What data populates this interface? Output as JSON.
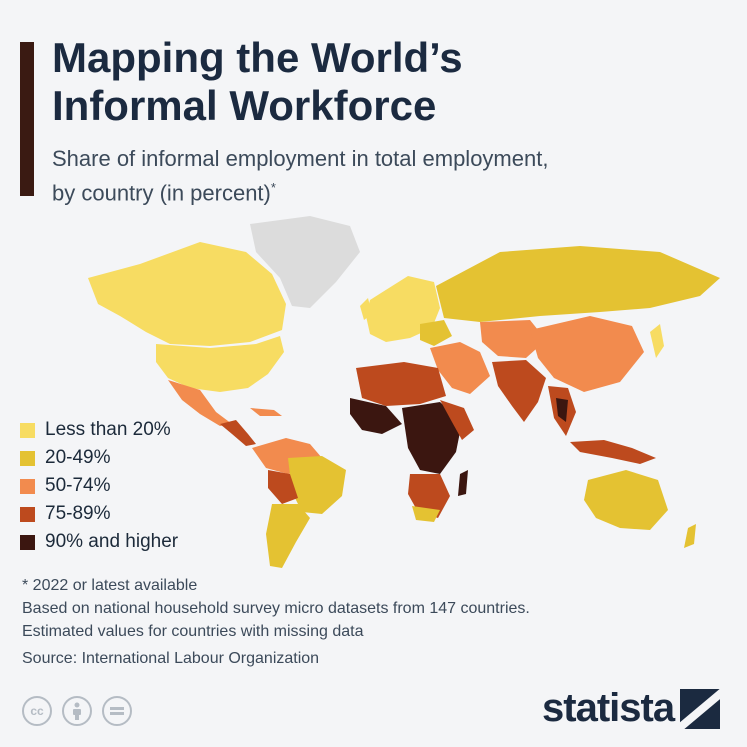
{
  "header": {
    "title_line1": "Mapping the World’s",
    "title_line2": "Informal Workforce",
    "subtitle_line1": "Share of informal employment in total employment,",
    "subtitle_line2": "by country (in percent)",
    "subtitle_mark": "*"
  },
  "legend": [
    {
      "label": "Less than 20%",
      "color": "#f7dc62"
    },
    {
      "label": "20-49%",
      "color": "#e4c232"
    },
    {
      "label": "50-74%",
      "color": "#f28b4e"
    },
    {
      "label": "75-89%",
      "color": "#bd4a1e"
    },
    {
      "label": "90% and higher",
      "color": "#3b1610"
    }
  ],
  "no_data_color": "#dcdcdc",
  "notes": {
    "line1": "* 2022 or latest available",
    "line2": "Based on national household survey micro datasets from 147 countries.",
    "line3": "Estimated values for countries with missing data",
    "source": "Source: International Labour Organization"
  },
  "footer": {
    "license_icons": [
      "cc-icon",
      "attribution-icon",
      "no-derivatives-icon"
    ],
    "cc_text": "cc",
    "brand": "statista"
  }
}
